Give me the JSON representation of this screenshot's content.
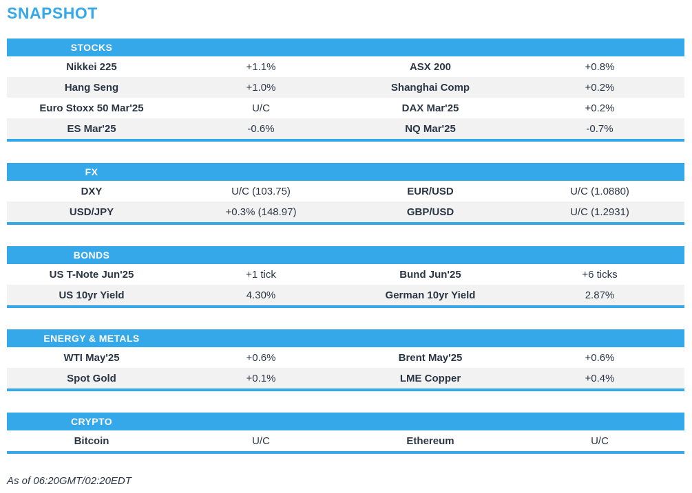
{
  "page": {
    "title": "SNAPSHOT",
    "footer": "As of 06:20GMT/02:20EDT"
  },
  "colors": {
    "accent_blue": "#35a8ea",
    "header_text": "#ffffff",
    "body_text": "#2b3645",
    "alt_row": "#f2f2f3"
  },
  "sections": [
    {
      "label": "STOCKS",
      "rows": [
        [
          "Nikkei 225",
          "+1.1%",
          "ASX 200",
          "+0.8%"
        ],
        [
          "Hang Seng",
          "+1.0%",
          "Shanghai Comp",
          "+0.2%"
        ],
        [
          "Euro Stoxx 50 Mar'25",
          "U/C",
          "DAX Mar'25",
          "+0.2%"
        ],
        [
          "ES Mar'25",
          "-0.6%",
          "NQ Mar'25",
          "-0.7%"
        ]
      ]
    },
    {
      "label": "FX",
      "rows": [
        [
          "DXY",
          "U/C (103.75)",
          "EUR/USD",
          "U/C (1.0880)"
        ],
        [
          "USD/JPY",
          "+0.3% (148.97)",
          "GBP/USD",
          "U/C (1.2931)"
        ]
      ]
    },
    {
      "label": "BONDS",
      "rows": [
        [
          "US T-Note Jun'25",
          "+1 tick",
          "Bund Jun'25",
          "+6 ticks"
        ],
        [
          "US 10yr Yield",
          "4.30%",
          "German 10yr Yield",
          "2.87%"
        ]
      ]
    },
    {
      "label": "ENERGY & METALS",
      "rows": [
        [
          "WTI May'25",
          "+0.6%",
          "Brent May'25",
          "+0.6%"
        ],
        [
          "Spot Gold",
          "+0.1%",
          "LME Copper",
          "+0.4%"
        ]
      ]
    },
    {
      "label": "CRYPTO",
      "rows": [
        [
          "Bitcoin",
          "U/C",
          "Ethereum",
          "U/C"
        ]
      ]
    }
  ]
}
